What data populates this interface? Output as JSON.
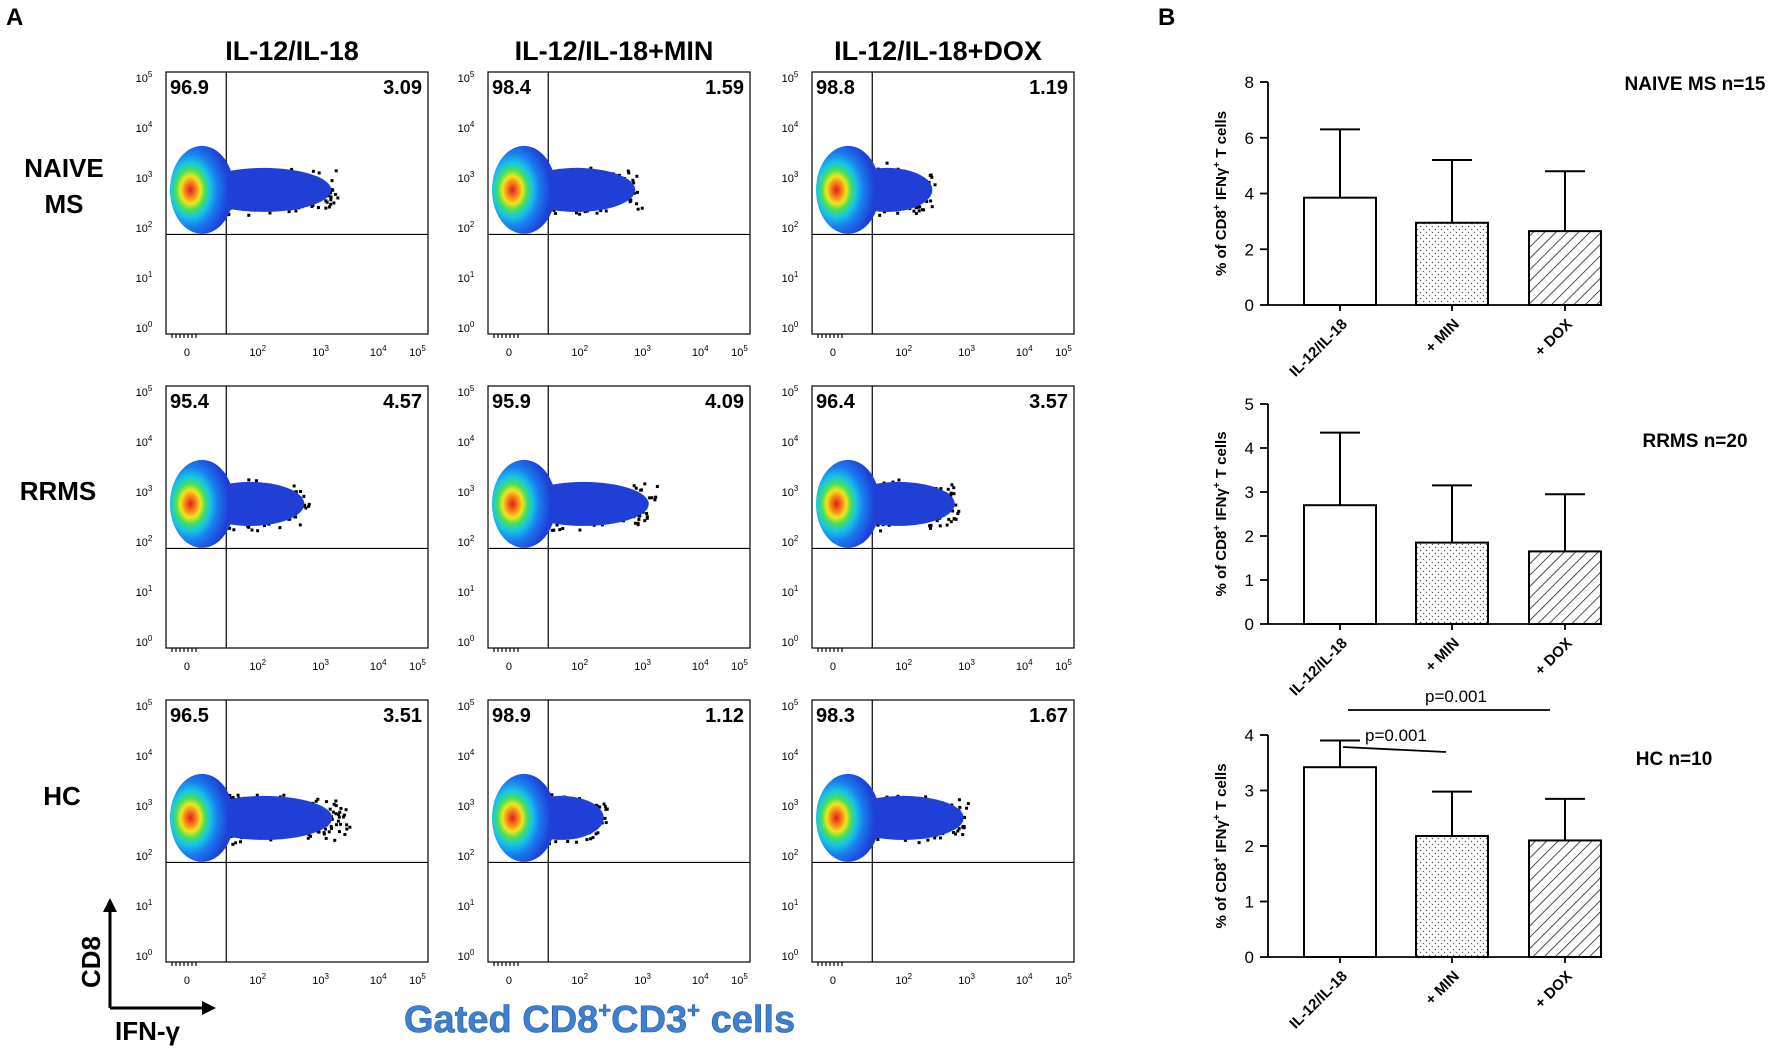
{
  "panel_labels": {
    "a": "A",
    "b": "B"
  },
  "colors": {
    "dot": "#000000",
    "density": [
      "#1f3fd6",
      "#1a7cf0",
      "#17c4e6",
      "#46e05a",
      "#f2e51a",
      "#f77f1a",
      "#e11d1d"
    ],
    "gated": "#3d7fd1"
  },
  "flow": {
    "columns": [
      "IL-12/IL-18",
      "IL-12/IL-18+MIN",
      "IL-12/IL-18+DOX"
    ],
    "rows": [
      "NAIVE MS",
      "RRMS",
      "HC"
    ],
    "y_ticks": [
      {
        "b": "10",
        "s": "5"
      },
      {
        "b": "10",
        "s": "4"
      },
      {
        "b": "10",
        "s": "3"
      },
      {
        "b": "10",
        "s": "2"
      },
      {
        "b": "10",
        "s": "1"
      },
      {
        "b": "10",
        "s": "0"
      }
    ],
    "x_ticks": [
      {
        "b": "0",
        "s": ""
      },
      {
        "b": "10",
        "s": "2"
      },
      {
        "b": "10",
        "s": "3"
      },
      {
        "b": "10",
        "s": "4"
      },
      {
        "b": "10",
        "s": "5"
      }
    ],
    "quadrants": [
      [
        {
          "ul": "96.9",
          "ur": "3.09"
        },
        {
          "ul": "98.4",
          "ur": "1.59"
        },
        {
          "ul": "98.8",
          "ur": "1.19"
        }
      ],
      [
        {
          "ul": "95.4",
          "ur": "4.57"
        },
        {
          "ul": "95.9",
          "ur": "4.09"
        },
        {
          "ul": "96.4",
          "ur": "3.57"
        }
      ],
      [
        {
          "ul": "96.5",
          "ur": "3.51"
        },
        {
          "ul": "98.9",
          "ur": "1.12"
        },
        {
          "ul": "98.3",
          "ur": "1.67"
        }
      ]
    ],
    "axis_y": "CD8",
    "axis_x": "IFN-γ",
    "gated_main": "Gated CD8",
    "gated_sup1": "+",
    "gated_mid": "CD3",
    "gated_sup2": "+",
    "gated_end": " cells"
  },
  "ylabel_parts": {
    "a": "% of CD8",
    "sup1": "+",
    "b": " IFNγ",
    "sup2": "+",
    "c": " T cells"
  },
  "chart_data": [
    {
      "type": "bar",
      "title": "NAIVE MS n=15",
      "categories": [
        "IL-12/IL-18",
        "+ MIN",
        "+ DOX"
      ],
      "values": [
        3.85,
        2.95,
        2.65
      ],
      "errors": [
        2.45,
        2.25,
        2.15
      ],
      "ylim": [
        0,
        8
      ],
      "yticks": [
        0,
        2,
        4,
        6,
        8
      ],
      "ylabel": "% of CD8+ IFNγ+ T cells",
      "patterns": [
        "none",
        "dots",
        "hatch"
      ],
      "annotations": []
    },
    {
      "type": "bar",
      "title": "RRMS n=20",
      "categories": [
        "IL-12/IL-18",
        "+ MIN",
        "+ DOX"
      ],
      "values": [
        2.7,
        1.85,
        1.65
      ],
      "errors": [
        1.65,
        1.3,
        1.3
      ],
      "ylim": [
        0,
        5
      ],
      "yticks": [
        0,
        1,
        2,
        3,
        4,
        5
      ],
      "ylabel": "% of CD8+ IFNγ+ T cells",
      "patterns": [
        "none",
        "dots",
        "hatch"
      ],
      "annotations": []
    },
    {
      "type": "bar",
      "title": "HC n=10",
      "categories": [
        "IL-12/IL-18",
        "+ MIN",
        "+ DOX"
      ],
      "values": [
        3.42,
        2.18,
        2.1
      ],
      "errors": [
        0.48,
        0.8,
        0.75
      ],
      "ylim": [
        0,
        4
      ],
      "yticks": [
        0,
        1,
        2,
        3,
        4
      ],
      "ylabel": "% of CD8+ IFNγ+ T cells",
      "patterns": [
        "none",
        "dots",
        "hatch"
      ],
      "annotations": [
        "p=0.001",
        "p=0.001"
      ]
    }
  ]
}
